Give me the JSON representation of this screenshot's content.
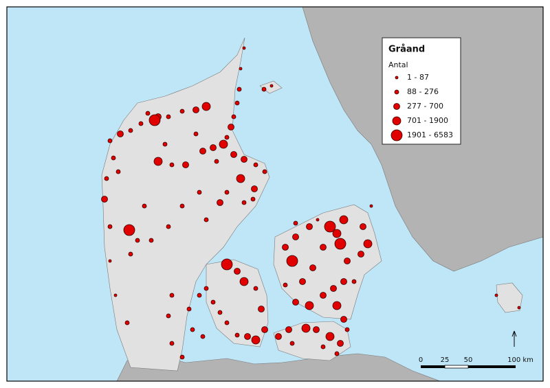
{
  "legend": {
    "title": "Gråand",
    "subtitle": "Antal",
    "classes": [
      "1 - 87",
      "88 - 276",
      "277 - 700",
      "701 - 1900",
      "1901 - 6583"
    ]
  },
  "scale_bar": {
    "labels": [
      "0",
      "25",
      "50",
      "100 km"
    ]
  }
}
